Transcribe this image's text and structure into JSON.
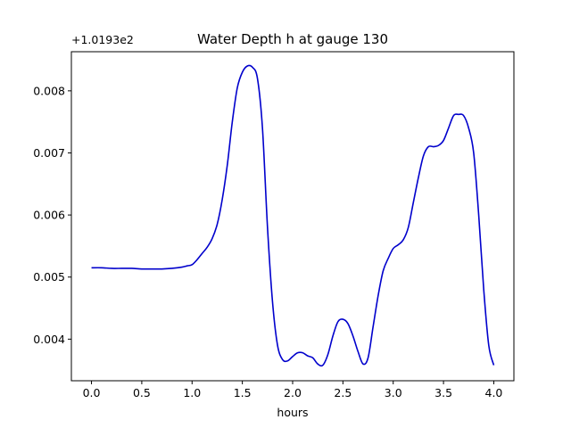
{
  "chart_data": {
    "type": "line",
    "title": "Water Depth h at gauge 130",
    "xlabel": "hours",
    "ylabel": "",
    "offset_label": "+1.0193e2",
    "xlim": [
      -0.2,
      4.2
    ],
    "ylim": [
      0.00333,
      0.00863
    ],
    "xticks": [
      0.0,
      0.5,
      1.0,
      1.5,
      2.0,
      2.5,
      3.0,
      3.5,
      4.0
    ],
    "xtick_labels": [
      "0.0",
      "0.5",
      "1.0",
      "1.5",
      "2.0",
      "2.5",
      "3.0",
      "3.5",
      "4.0"
    ],
    "yticks": [
      0.004,
      0.005,
      0.006,
      0.007,
      0.008
    ],
    "ytick_labels": [
      "0.004",
      "0.005",
      "0.006",
      "0.007",
      "0.008"
    ],
    "grid": false,
    "series": [
      {
        "color": "#0000cc",
        "x": [
          0.0,
          0.1,
          0.2,
          0.3,
          0.4,
          0.5,
          0.6,
          0.7,
          0.8,
          0.9,
          0.95,
          1.0,
          1.05,
          1.1,
          1.15,
          1.2,
          1.25,
          1.3,
          1.35,
          1.4,
          1.45,
          1.5,
          1.55,
          1.6,
          1.65,
          1.7,
          1.75,
          1.8,
          1.85,
          1.9,
          1.95,
          2.0,
          2.05,
          2.1,
          2.15,
          2.2,
          2.25,
          2.3,
          2.35,
          2.4,
          2.45,
          2.5,
          2.55,
          2.6,
          2.65,
          2.7,
          2.75,
          2.8,
          2.85,
          2.9,
          2.95,
          3.0,
          3.05,
          3.1,
          3.15,
          3.2,
          3.25,
          3.3,
          3.35,
          3.4,
          3.45,
          3.5,
          3.55,
          3.6,
          3.65,
          3.7,
          3.75,
          3.8,
          3.85,
          3.9,
          3.95,
          4.0
        ],
        "values": [
          0.00515,
          0.00515,
          0.00514,
          0.00514,
          0.00514,
          0.00513,
          0.00513,
          0.00513,
          0.00514,
          0.00516,
          0.00518,
          0.0052,
          0.00528,
          0.00538,
          0.00548,
          0.00562,
          0.00585,
          0.00625,
          0.0068,
          0.0075,
          0.00805,
          0.0083,
          0.0084,
          0.00838,
          0.0082,
          0.0074,
          0.0058,
          0.0046,
          0.0039,
          0.00367,
          0.00365,
          0.00372,
          0.00378,
          0.00378,
          0.00373,
          0.0037,
          0.0036,
          0.00358,
          0.00375,
          0.00405,
          0.00428,
          0.00432,
          0.00425,
          0.00405,
          0.0038,
          0.0036,
          0.0037,
          0.0042,
          0.0047,
          0.0051,
          0.0053,
          0.00546,
          0.00552,
          0.0056,
          0.0058,
          0.0062,
          0.0066,
          0.00695,
          0.0071,
          0.0071,
          0.00712,
          0.0072,
          0.0074,
          0.0076,
          0.00762,
          0.0076,
          0.0074,
          0.007,
          0.006,
          0.0048,
          0.0039,
          0.00358
        ]
      }
    ]
  }
}
